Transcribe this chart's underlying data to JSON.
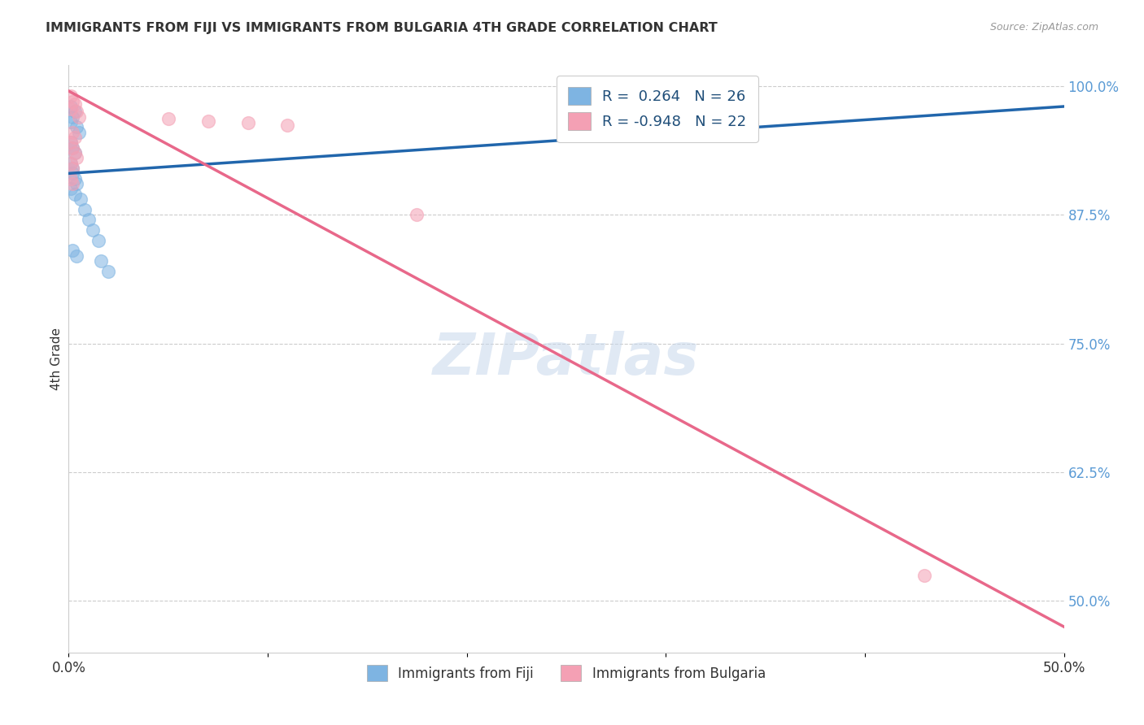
{
  "title": "IMMIGRANTS FROM FIJI VS IMMIGRANTS FROM BULGARIA 4TH GRADE CORRELATION CHART",
  "source_text": "Source: ZipAtlas.com",
  "ylabel": "4th Grade",
  "fiji_R": 0.264,
  "fiji_N": 26,
  "bulgaria_R": -0.948,
  "bulgaria_N": 22,
  "fiji_color": "#7EB4E2",
  "bulgaria_color": "#F4A0B4",
  "fiji_line_color": "#2166AC",
  "bulgaria_line_color": "#E8688A",
  "fiji_scatter_x": [
    0.001,
    0.002,
    0.003,
    0.001,
    0.004,
    0.005,
    0.001,
    0.002,
    0.003,
    0.001,
    0.002,
    0.002,
    0.003,
    0.004,
    0.001,
    0.003,
    0.006,
    0.008,
    0.01,
    0.012,
    0.015,
    0.002,
    0.004,
    0.016,
    0.02,
    0.33
  ],
  "fiji_scatter_y": [
    0.98,
    0.97,
    0.975,
    0.965,
    0.96,
    0.955,
    0.945,
    0.94,
    0.935,
    0.925,
    0.92,
    0.915,
    0.91,
    0.905,
    0.9,
    0.895,
    0.89,
    0.88,
    0.87,
    0.86,
    0.85,
    0.84,
    0.835,
    0.83,
    0.82,
    0.99
  ],
  "bulgaria_scatter_x": [
    0.001,
    0.002,
    0.003,
    0.001,
    0.004,
    0.005,
    0.05,
    0.07,
    0.09,
    0.11,
    0.002,
    0.003,
    0.001,
    0.002,
    0.003,
    0.004,
    0.001,
    0.002,
    0.175,
    0.001,
    0.002,
    0.43
  ],
  "bulgaria_scatter_y": [
    0.99,
    0.985,
    0.982,
    0.978,
    0.975,
    0.97,
    0.968,
    0.966,
    0.964,
    0.962,
    0.955,
    0.95,
    0.945,
    0.94,
    0.935,
    0.93,
    0.925,
    0.92,
    0.875,
    0.91,
    0.905,
    0.525
  ],
  "fiji_trendline_x": [
    0.0,
    0.5
  ],
  "fiji_trendline_y": [
    0.915,
    0.98
  ],
  "bulgaria_trendline_x": [
    0.0,
    0.5
  ],
  "bulgaria_trendline_y": [
    0.995,
    0.475
  ],
  "watermark": "ZIPatlas",
  "legend_label_fiji": "Immigrants from Fiji",
  "legend_label_bulgaria": "Immigrants from Bulgaria",
  "background_color": "#FFFFFF",
  "grid_color": "#CCCCCC",
  "y_ticks_right": [
    0.5,
    0.625,
    0.75,
    0.875,
    1.0
  ],
  "y_tick_labels_right": [
    "50.0%",
    "62.5%",
    "75.0%",
    "87.5%",
    "100.0%"
  ],
  "ylim": [
    0.45,
    1.02
  ],
  "xlim": [
    0.0,
    0.5
  ]
}
